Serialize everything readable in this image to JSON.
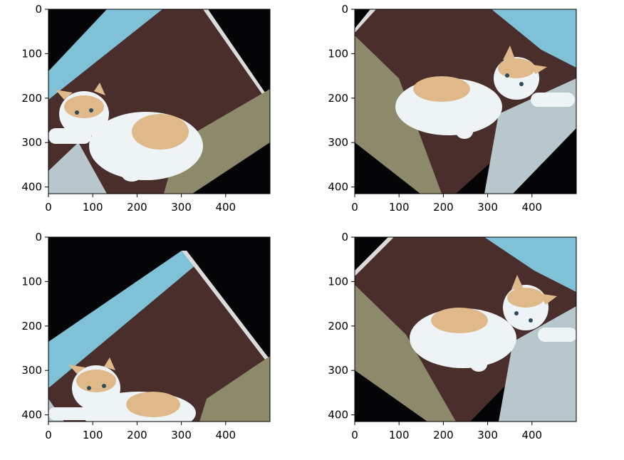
{
  "figure": {
    "panels": [
      {
        "id": "top-left",
        "image": "rotated-cat-photo",
        "x_ticks": [
          "0",
          "100",
          "200",
          "300",
          "400"
        ],
        "y_ticks": [
          "0",
          "100",
          "200",
          "300",
          "400"
        ]
      },
      {
        "id": "top-right",
        "image": "rotated-cat-photo",
        "x_ticks": [
          "0",
          "100",
          "200",
          "300",
          "400"
        ],
        "y_ticks": [
          "0",
          "100",
          "200",
          "300",
          "400"
        ]
      },
      {
        "id": "bottom-left",
        "image": "rotated-cat-photo",
        "x_ticks": [
          "0",
          "100",
          "200",
          "300",
          "400"
        ],
        "y_ticks": [
          "0",
          "100",
          "200",
          "300",
          "400"
        ]
      },
      {
        "id": "bottom-right",
        "image": "rotated-cat-photo",
        "x_ticks": [
          "0",
          "100",
          "200",
          "300",
          "400"
        ],
        "y_ticks": [
          "0",
          "100",
          "200",
          "300",
          "400"
        ]
      }
    ],
    "colors": {
      "background": "#ffffff",
      "fill_black": "#050507",
      "wall_blue": "#7fc1d6",
      "floor_brown": "#4a2e2c",
      "rug": "#8c8a6a",
      "fur_white": "#eef4f6",
      "fur_orange": "#e0b98a"
    }
  }
}
